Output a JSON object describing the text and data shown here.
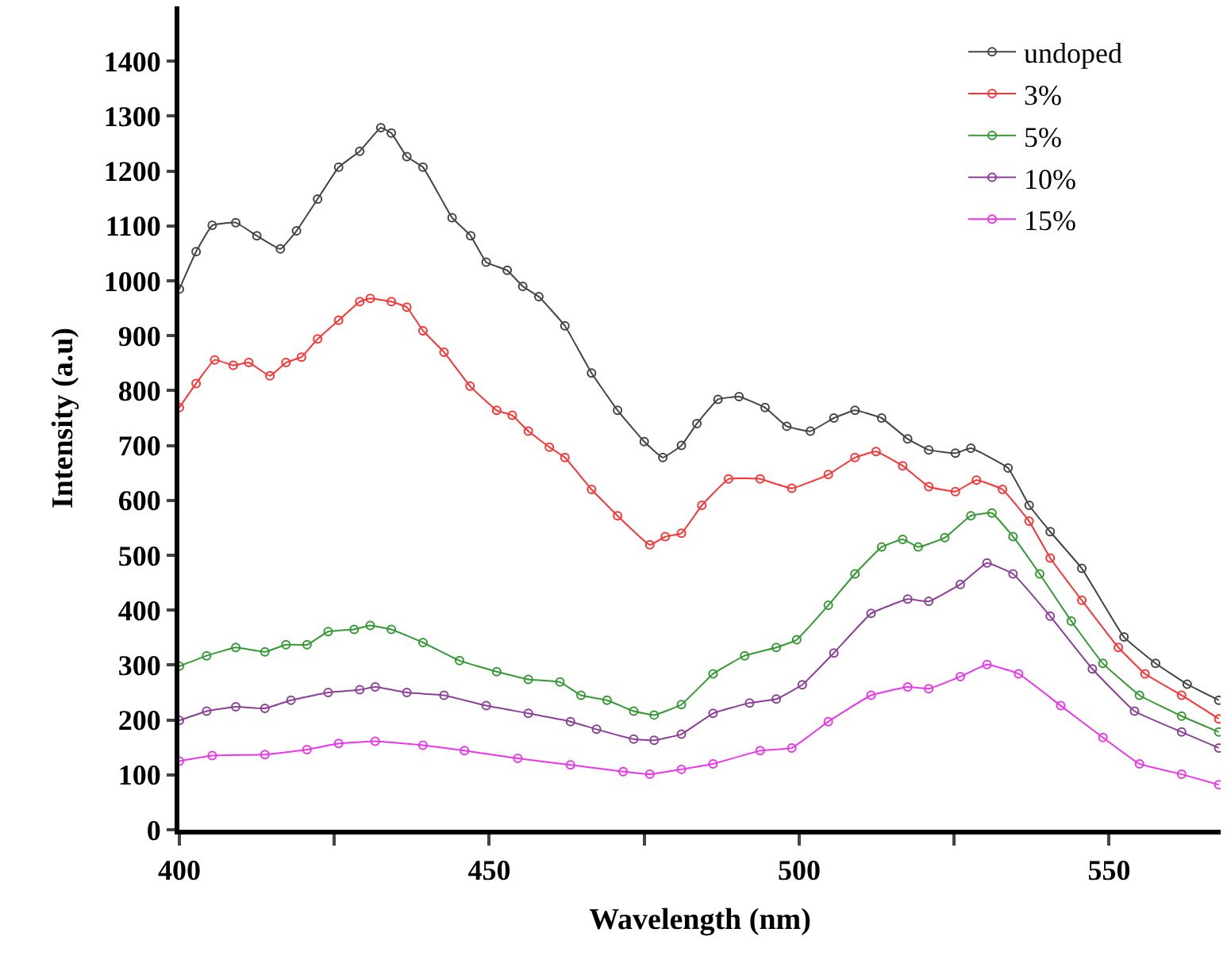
{
  "chart_data": {
    "type": "line",
    "xlabel": "Wavelength (nm)",
    "ylabel": "Intensity (a.u)",
    "xlim": [
      400,
      568
    ],
    "xticks": [
      400,
      {
        "value": 425,
        "label": null
      },
      450,
      {
        "value": 475,
        "label": null
      },
      500,
      {
        "value": 525,
        "label": null
      },
      550
    ],
    "ylim": [
      0,
      1500
    ],
    "yticks": [
      0,
      100,
      200,
      300,
      400,
      500,
      600,
      700,
      800,
      900,
      1000,
      1100,
      1200,
      1300,
      1400
    ],
    "legend": "top right",
    "marker": "circle",
    "line_style": "solid",
    "series": [
      {
        "name": "undoped",
        "color": "#444444",
        "x": [
          400,
          402.7,
          405.3,
          409.1,
          412.5,
          416.3,
          418.9,
          422.3,
          425.7,
          429.1,
          432.5,
          434.2,
          436.7,
          439.3,
          444.0,
          447.0,
          449.5,
          452.9,
          455.4,
          458.0,
          462.2,
          466.5,
          470.7,
          475.0,
          478.0,
          481.0,
          483.5,
          486.9,
          490.3,
          494.5,
          498.0,
          501.8,
          505.6,
          509.0,
          513.3,
          517.5,
          520.9,
          525.2,
          527.7,
          533.7,
          537.1,
          540.5,
          545.6,
          552.4,
          557.5,
          562.6,
          567.7
        ],
        "values": [
          985,
          1053,
          1101,
          1106,
          1082,
          1058,
          1091,
          1149,
          1207,
          1236,
          1279,
          1269,
          1226,
          1207,
          1115,
          1082,
          1034,
          1019,
          990,
          971,
          918,
          832,
          764,
          707,
          678,
          700,
          740,
          784,
          789,
          769,
          735,
          726,
          750,
          764,
          750,
          712,
          692,
          686,
          695,
          659,
          591,
          543,
          476,
          351,
          303,
          265,
          236
        ]
      },
      {
        "name": "3%",
        "color": "#ff3333",
        "x": [
          400,
          402.7,
          405.7,
          408.7,
          411.2,
          414.6,
          417.2,
          419.7,
          422.3,
          425.7,
          429.1,
          430.8,
          434.2,
          436.7,
          439.3,
          442.7,
          446.9,
          451.2,
          453.7,
          456.3,
          459.7,
          462.2,
          466.5,
          470.7,
          475.9,
          478.4,
          481.0,
          484.3,
          488.6,
          493.7,
          498.8,
          504.7,
          509.0,
          512.4,
          516.7,
          520.9,
          525.2,
          528.6,
          532.8,
          537.1,
          540.5,
          545.6,
          551.5,
          555.8,
          561.7,
          567.7
        ],
        "values": [
          769,
          813,
          856,
          846,
          851,
          827,
          851,
          861,
          894,
          928,
          962,
          968,
          962,
          952,
          909,
          870,
          808,
          764,
          755,
          726,
          697,
          678,
          620,
          572,
          519,
          534,
          540,
          591,
          639,
          639,
          622,
          647,
          678,
          689,
          663,
          625,
          616,
          637,
          620,
          562,
          495,
          418,
          332,
          284,
          245,
          202
        ]
      },
      {
        "name": "5%",
        "color": "#339933",
        "x": [
          400,
          404.4,
          409.1,
          413.8,
          417.2,
          420.6,
          424.0,
          428.2,
          430.8,
          434.2,
          439.3,
          445.2,
          451.2,
          456.3,
          461.4,
          464.8,
          469.0,
          473.3,
          476.6,
          481.0,
          486.1,
          491.2,
          496.3,
          499.6,
          504.7,
          509.0,
          513.3,
          516.7,
          519.2,
          523.5,
          527.7,
          531.1,
          534.5,
          538.8,
          543.9,
          549.0,
          554.9,
          561.7,
          567.7
        ],
        "values": [
          298,
          317,
          332,
          324,
          337,
          337,
          361,
          365,
          372,
          365,
          341,
          308,
          288,
          274,
          269,
          245,
          236,
          216,
          209,
          228,
          284,
          317,
          332,
          346,
          409,
          466,
          515,
          529,
          515,
          532,
          572,
          577,
          534,
          466,
          380,
          303,
          245,
          207,
          178
        ]
      },
      {
        "name": "10%",
        "color": "#8b3f99",
        "x": [
          400,
          404.4,
          409.1,
          413.8,
          418.0,
          424.0,
          429.1,
          431.6,
          436.7,
          442.7,
          449.5,
          456.3,
          463.1,
          467.3,
          473.3,
          476.6,
          481.0,
          486.1,
          492.0,
          496.3,
          500.5,
          505.6,
          511.6,
          517.5,
          520.9,
          526.0,
          530.3,
          534.5,
          540.5,
          547.3,
          554.1,
          561.7,
          567.7
        ],
        "values": [
          199,
          216,
          224,
          221,
          236,
          250,
          255,
          260,
          250,
          245,
          226,
          212,
          197,
          183,
          165,
          163,
          174,
          212,
          231,
          238,
          264,
          322,
          394,
          420,
          416,
          447,
          486,
          466,
          389,
          293,
          216,
          178,
          149
        ]
      },
      {
        "name": "15%",
        "color": "#ee33ee",
        "x": [
          400,
          405.3,
          413.8,
          420.6,
          425.7,
          431.6,
          439.3,
          446.0,
          454.6,
          463.1,
          471.6,
          475.9,
          481.0,
          486.1,
          493.7,
          498.8,
          504.7,
          511.6,
          517.5,
          520.9,
          526.0,
          530.3,
          535.4,
          542.2,
          549.0,
          554.9,
          561.7,
          567.7
        ],
        "values": [
          125,
          135,
          137,
          146,
          157,
          161,
          154,
          144,
          130,
          118,
          106,
          101,
          110,
          120,
          144,
          149,
          197,
          245,
          260,
          257,
          279,
          301,
          284,
          226,
          168,
          120,
          101,
          82
        ]
      }
    ]
  }
}
